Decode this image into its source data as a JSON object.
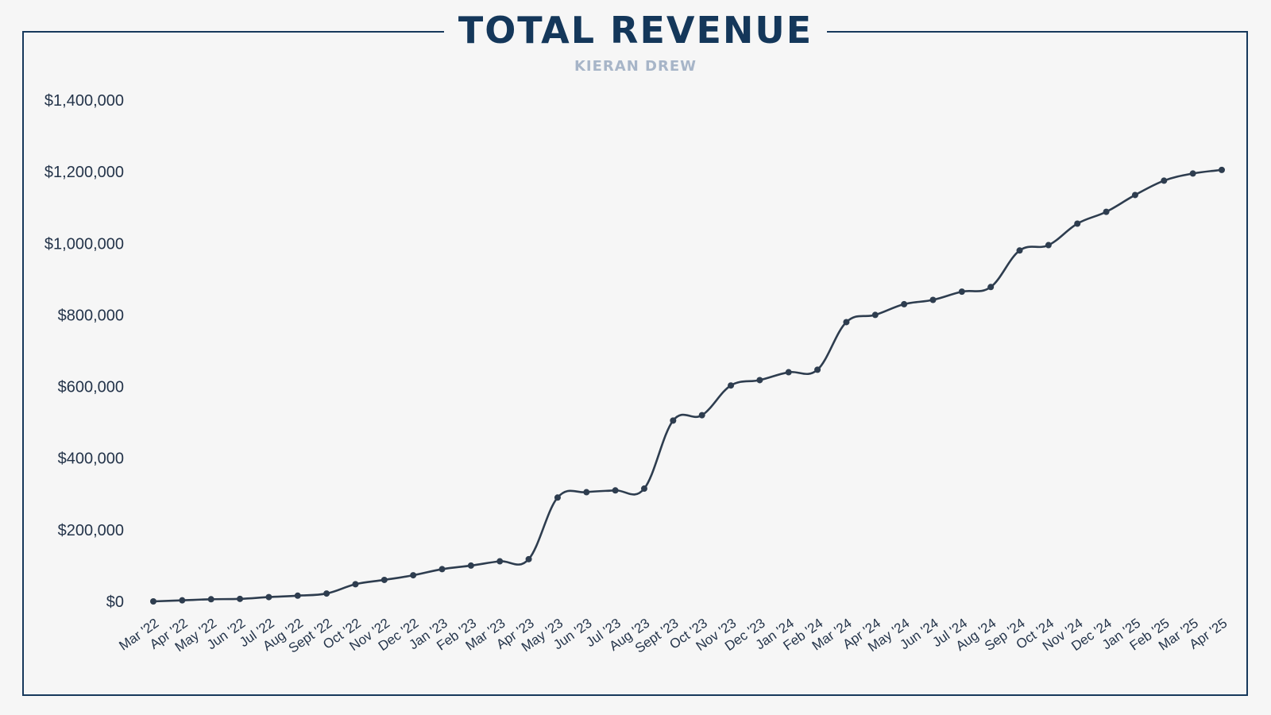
{
  "chart_data": {
    "type": "line",
    "title": "TOTAL REVENUE",
    "subtitle": "KIERAN DREW",
    "xlabel": "",
    "ylabel": "",
    "ylim": [
      0,
      1400000
    ],
    "yticks": [
      0,
      200000,
      400000,
      600000,
      800000,
      1000000,
      1200000,
      1400000
    ],
    "ytick_labels": [
      "$0",
      "$200,000",
      "$400,000",
      "$600,000",
      "$800,000",
      "$1,000,000",
      "$1,200,000",
      "$1,400,000"
    ],
    "grid": false,
    "line_color": "#2e3d4f",
    "frame_color": "#17395c",
    "categories": [
      "Mar '22",
      "Apr '22",
      "May '22",
      "Jun '22",
      "Jul '22",
      "Aug '22",
      "Sept '22",
      "Oct '22",
      "Nov '22",
      "Dec '22",
      "Jan '23",
      "Feb '23",
      "Mar '23",
      "Apr '23",
      "May '23",
      "Jun '23",
      "Jul '23",
      "Aug '23",
      "Sept '23",
      "Oct '23",
      "Nov '23",
      "Dec '23",
      "Jan '24",
      "Feb '24",
      "Mar '24",
      "Apr '24",
      "May '24",
      "Jun '24",
      "Jul '24",
      "Aug '24",
      "Sep '24",
      "Oct '24",
      "Nov '24",
      "Dec '24",
      "Jan '25",
      "Feb '25",
      "Mar '25",
      "Apr '25"
    ],
    "series": [
      {
        "values": [
          0,
          3000,
          6000,
          7000,
          12000,
          16000,
          22000,
          48000,
          60000,
          73000,
          90000,
          100000,
          112000,
          118000,
          290000,
          305000,
          310000,
          315000,
          505000,
          520000,
          603000,
          618000,
          640000,
          647000,
          780000,
          800000,
          830000,
          842000,
          865000,
          878000,
          980000,
          995000,
          1055000,
          1088000,
          1135000,
          1175000,
          1195000,
          1205000
        ]
      }
    ]
  }
}
